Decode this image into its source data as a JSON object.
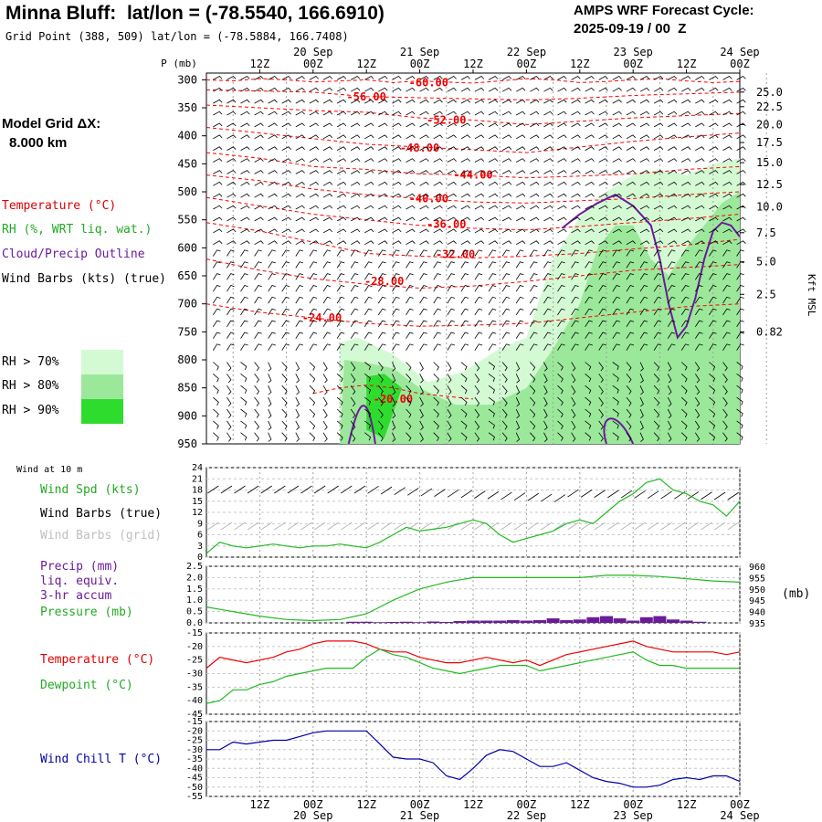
{
  "header": {
    "title": "Minna Bluff:  lat/lon = (-78.5540, 166.6910)",
    "subtitle": "Grid Point (388, 509) lat/lon = (-78.5884, 166.7408)",
    "cycle_line1": "AMPS WRF Forecast Cycle:",
    "cycle_line2": "2025-09-19 / 00  Z"
  },
  "model_grid": {
    "label": "Model Grid ΔX:",
    "value": "8.000 km"
  },
  "legend": {
    "temperature": "Temperature (°C)",
    "rh": "RH (%, WRT liq. wat.)",
    "cloud": "Cloud/Precip Outline",
    "wind": "Wind Barbs (kts) (true)",
    "rh70": "RH > 70%",
    "rh80": "RH > 80%",
    "rh90": "RH > 90%",
    "rh70_color": "#d4fad4",
    "rh80_color": "#9be89b",
    "rh90_color": "#2edc2e"
  },
  "panels": {
    "wind10m_title": "Wind at 10 m",
    "wind_spd": "Wind Spd (kts)",
    "wind_barbs_true": "Wind Barbs (true)",
    "wind_barbs_grid": "Wind Barbs (grid)",
    "precip_l1": "Precip (mm)",
    "precip_l2": "liq. equiv.",
    "precip_l3": "3-hr accum",
    "pressure": "Pressure (mb)",
    "pressure_unit": "(mb)",
    "temperature": "Temperature (°C)",
    "dewpoint": "Dewpoint (°C)",
    "windchill": "Wind Chill T (°C)"
  },
  "colors": {
    "temperature": "#ff0000",
    "rh_wind_spd": "#22bb22",
    "cloud": "#6a1b9a",
    "windchill": "#0000aa",
    "grid": "#a0a0a0",
    "grid_barbs": "#b0b0b0"
  },
  "chart_data": [
    {
      "type": "heatmap",
      "name": "time-height cross section",
      "p_axis_label": "P (mb)",
      "p_ticks": [
        "300",
        "350",
        "400",
        "450",
        "500",
        "550",
        "600",
        "650",
        "700",
        "750",
        "800",
        "850",
        "900",
        "950"
      ],
      "kft_label": "Kft MSL",
      "kft_ticks": [
        "25.0",
        "22.5",
        "20.0",
        "17.5",
        "15.0",
        "12.5",
        "10.0",
        "7.5",
        "5.0",
        "2.5",
        "0.82"
      ],
      "kft_p": [
        322,
        348,
        380,
        412,
        448,
        487,
        527,
        573,
        625,
        683,
        750
      ],
      "top_time_labels": [
        "12Z",
        "00Z",
        "12Z",
        "00Z",
        "12Z",
        "00Z",
        "12Z",
        "00Z",
        "12Z",
        "00Z"
      ],
      "top_date_labels": [
        "20 Sep",
        "21 Sep",
        "22 Sep",
        "23 Sep",
        "24 Sep"
      ],
      "temperature_contours": [
        {
          "label": "-60.00",
          "p": 305,
          "hours": [
            0,
            6,
            12,
            18,
            24,
            30,
            36,
            42,
            48,
            54,
            60,
            66,
            72,
            78,
            84,
            90,
            96,
            102,
            108,
            114,
            120
          ],
          "values_p": [
            300,
            302,
            298,
            300,
            304,
            302,
            300,
            305,
            302,
            304,
            306,
            302,
            298,
            300,
            305,
            303,
            300,
            298,
            302,
            305,
            303
          ]
        },
        {
          "label": "-56.00",
          "p": 330,
          "hours": [
            0,
            12,
            24,
            36,
            48,
            60,
            72,
            84,
            96,
            108,
            120
          ],
          "values_p": [
            318,
            320,
            322,
            330,
            332,
            334,
            336,
            333,
            328,
            325,
            322
          ]
        },
        {
          "label": "-52.00",
          "p": 372,
          "hours": [
            0,
            12,
            24,
            36,
            48,
            60,
            72,
            84,
            96,
            108,
            120
          ],
          "values_p": [
            345,
            350,
            355,
            358,
            368,
            372,
            380,
            374,
            368,
            364,
            360
          ]
        },
        {
          "label": "-48.00",
          "p": 422,
          "hours": [
            0,
            12,
            24,
            36,
            48,
            60,
            72,
            84,
            96,
            108,
            120
          ],
          "values_p": [
            385,
            395,
            405,
            415,
            420,
            425,
            430,
            420,
            410,
            402,
            395
          ]
        },
        {
          "label": "-44.00",
          "p": 470,
          "hours": [
            0,
            12,
            24,
            36,
            48,
            60,
            72,
            84,
            96,
            108,
            120
          ],
          "values_p": [
            430,
            440,
            455,
            460,
            468,
            470,
            475,
            472,
            468,
            460,
            455
          ]
        },
        {
          "label": "-40.00",
          "p": 512,
          "hours": [
            0,
            12,
            24,
            36,
            48,
            60,
            72,
            84,
            96,
            108,
            120
          ],
          "values_p": [
            470,
            480,
            495,
            505,
            512,
            518,
            520,
            516,
            512,
            505,
            500
          ]
        },
        {
          "label": "-36.00",
          "p": 558,
          "hours": [
            0,
            12,
            24,
            36,
            48,
            60,
            72,
            84,
            96,
            108,
            120
          ],
          "values_p": [
            510,
            525,
            540,
            550,
            560,
            565,
            568,
            562,
            555,
            548,
            540
          ]
        },
        {
          "label": "-32.00",
          "p": 612,
          "hours": [
            0,
            12,
            24,
            36,
            48,
            60,
            72,
            84,
            96,
            108,
            120
          ],
          "values_p": [
            555,
            570,
            590,
            610,
            615,
            618,
            615,
            610,
            602,
            595,
            585
          ]
        },
        {
          "label": "-28.00",
          "p": 660,
          "hours": [
            0,
            12,
            24,
            36,
            48,
            60,
            72,
            84,
            96,
            108,
            120
          ],
          "values_p": [
            620,
            640,
            655,
            665,
            672,
            668,
            660,
            650,
            640,
            635,
            630
          ]
        },
        {
          "label": "-24.00",
          "p": 725,
          "hours": [
            0,
            12,
            24,
            36,
            48,
            60,
            72,
            84,
            96,
            108,
            120
          ],
          "values_p": [
            700,
            715,
            725,
            735,
            740,
            738,
            735,
            725,
            715,
            705,
            700
          ]
        },
        {
          "label": "-20.00",
          "p": 870,
          "hours": [
            24,
            30,
            36,
            42,
            48,
            54,
            60
          ],
          "values_p": [
            860,
            850,
            845,
            850,
            860,
            865,
            870
          ]
        }
      ],
      "rh_regions": [
        {
          "threshold": "70",
          "polygon": [
            [
              30,
              950
            ],
            [
              30,
              770
            ],
            [
              34,
              760
            ],
            [
              42,
              790
            ],
            [
              50,
              840
            ],
            [
              58,
              820
            ],
            [
              66,
              780
            ],
            [
              72,
              760
            ],
            [
              78,
              620
            ],
            [
              84,
              545
            ],
            [
              90,
              500
            ],
            [
              96,
              470
            ],
            [
              102,
              460
            ],
            [
              108,
              470
            ],
            [
              114,
              450
            ],
            [
              120,
              440
            ],
            [
              120,
              950
            ]
          ]
        },
        {
          "threshold": "80",
          "polygon": [
            [
              30,
              950
            ],
            [
              31,
              800
            ],
            [
              36,
              805
            ],
            [
              42,
              815
            ],
            [
              48,
              850
            ],
            [
              56,
              880
            ],
            [
              64,
              880
            ],
            [
              72,
              850
            ],
            [
              78,
              780
            ],
            [
              84,
              700
            ],
            [
              88,
              600
            ],
            [
              92,
              560
            ],
            [
              96,
              560
            ],
            [
              100,
              620
            ],
            [
              104,
              650
            ],
            [
              108,
              600
            ],
            [
              112,
              560
            ],
            [
              116,
              520
            ],
            [
              120,
              500
            ],
            [
              120,
              950
            ]
          ]
        },
        {
          "threshold": "90",
          "polygon": [
            [
              36,
              925
            ],
            [
              36,
              830
            ],
            [
              40,
              825
            ],
            [
              44,
              850
            ],
            [
              40,
              940
            ]
          ]
        }
      ],
      "cloud_outline": [
        [
          [
            80,
            565
          ],
          [
            84,
            540
          ],
          [
            88,
            520
          ],
          [
            92,
            505
          ],
          [
            96,
            525
          ],
          [
            100,
            560
          ],
          [
            102,
            620
          ],
          [
            104,
            700
          ],
          [
            106,
            760
          ],
          [
            108,
            740
          ],
          [
            110,
            690
          ],
          [
            112,
            620
          ],
          [
            114,
            570
          ],
          [
            116,
            555
          ],
          [
            118,
            560
          ],
          [
            120,
            580
          ]
        ]
      ],
      "wind_barbs": "dense grid; speeds 5-35 kts, westerly aloft, south-easterly near surface"
    },
    {
      "type": "line",
      "name": "10 m wind speed",
      "ylabel": "Wind Spd (kts)",
      "ylim": [
        0,
        24
      ],
      "y_ticks": [
        "0",
        "3",
        "6",
        "9",
        "12",
        "15",
        "18",
        "21",
        "24"
      ],
      "hours": [
        0,
        3,
        6,
        9,
        12,
        15,
        18,
        21,
        24,
        27,
        30,
        33,
        36,
        39,
        42,
        45,
        48,
        51,
        54,
        57,
        60,
        63,
        66,
        69,
        72,
        75,
        78,
        81,
        84,
        87,
        90,
        93,
        96,
        99,
        102,
        105,
        108,
        111,
        114,
        117,
        120
      ],
      "values": [
        1,
        4,
        3,
        2.5,
        3,
        3.5,
        3,
        2.5,
        3,
        3,
        3.5,
        3,
        2.5,
        4,
        6,
        8,
        7,
        7.5,
        8,
        9,
        10,
        9,
        6,
        4,
        5,
        6,
        7,
        9,
        10,
        9,
        12,
        15,
        17,
        20,
        21,
        18,
        17,
        15,
        14,
        11,
        15
      ]
    },
    {
      "type": "bar",
      "name": "precip 3-hr accum",
      "ylim": [
        0,
        2.5
      ],
      "y_ticks": [
        "0.0",
        "0.5",
        "1.0",
        "1.5",
        "2.0",
        "2.5"
      ],
      "hours": [
        33,
        36,
        39,
        42,
        45,
        48,
        51,
        54,
        57,
        60,
        63,
        66,
        69,
        72,
        75,
        78,
        81,
        84,
        87,
        90,
        93,
        96,
        99,
        102,
        105,
        108,
        111
      ],
      "values": [
        0.05,
        0.05,
        0.03,
        0.04,
        0.05,
        0.03,
        0.06,
        0.04,
        0.08,
        0.1,
        0.1,
        0.1,
        0.12,
        0.1,
        0.12,
        0.2,
        0.12,
        0.15,
        0.25,
        0.3,
        0.2,
        0.1,
        0.25,
        0.3,
        0.15,
        0.1,
        0.05
      ]
    },
    {
      "type": "line",
      "name": "surface pressure",
      "ylabel": "Pressure (mb)",
      "ylim": [
        935,
        960
      ],
      "y_ticks": [
        "935",
        "940",
        "945",
        "950",
        "955",
        "960"
      ],
      "hours": [
        0,
        6,
        12,
        18,
        24,
        30,
        36,
        42,
        48,
        54,
        60,
        66,
        72,
        78,
        84,
        90,
        96,
        102,
        108,
        114,
        120
      ],
      "values": [
        942,
        940,
        938,
        936.5,
        936,
        936.5,
        939,
        945,
        950,
        953,
        955,
        955,
        955,
        955,
        955,
        956,
        956,
        955.5,
        954.5,
        953.5,
        953
      ]
    },
    {
      "type": "line",
      "name": "temperature and dewpoint",
      "ylim": [
        -45,
        -15
      ],
      "y_ticks": [
        "-15",
        "-20",
        "-25",
        "-30",
        "-35",
        "-40",
        "-45"
      ],
      "hours": [
        0,
        3,
        6,
        9,
        12,
        15,
        18,
        21,
        24,
        27,
        30,
        33,
        36,
        39,
        42,
        45,
        48,
        51,
        54,
        57,
        60,
        63,
        66,
        69,
        72,
        75,
        78,
        81,
        84,
        87,
        90,
        93,
        96,
        99,
        102,
        105,
        108,
        111,
        114,
        117,
        120
      ],
      "series": [
        {
          "name": "Temperature",
          "values": [
            -28,
            -24,
            -25,
            -26,
            -25,
            -24,
            -22,
            -21,
            -19,
            -18,
            -18,
            -18,
            -19,
            -21,
            -22,
            -22,
            -24,
            -25,
            -26,
            -26,
            -25,
            -24,
            -25,
            -26,
            -25,
            -27,
            -25,
            -23,
            -22,
            -21,
            -20,
            -19,
            -18,
            -20,
            -21,
            -22,
            -22,
            -22,
            -22,
            -23,
            -22
          ]
        },
        {
          "name": "Dewpoint",
          "values": [
            -41,
            -40,
            -36,
            -36,
            -34,
            -33,
            -31,
            -30,
            -29,
            -28,
            -28,
            -28,
            -24,
            -21,
            -23,
            -24,
            -26,
            -28,
            -29,
            -30,
            -29,
            -28,
            -27,
            -27,
            -27,
            -29,
            -28,
            -27,
            -26,
            -25,
            -24,
            -23,
            -22,
            -25,
            -27,
            -27,
            -28,
            -28,
            -28,
            -28,
            -28
          ]
        }
      ]
    },
    {
      "type": "line",
      "name": "wind chill",
      "ylabel": "Wind Chill T (°C)",
      "ylim": [
        -55,
        -15
      ],
      "y_ticks": [
        "-15",
        "-20",
        "-25",
        "-30",
        "-35",
        "-40",
        "-45",
        "-50",
        "-55"
      ],
      "hours": [
        0,
        3,
        6,
        9,
        12,
        15,
        18,
        21,
        24,
        27,
        30,
        33,
        36,
        39,
        42,
        45,
        48,
        51,
        54,
        57,
        60,
        63,
        66,
        69,
        72,
        75,
        78,
        81,
        84,
        87,
        90,
        93,
        96,
        99,
        102,
        105,
        108,
        111,
        114,
        117,
        120
      ],
      "values": [
        -30,
        -30,
        -26,
        -27,
        -26,
        -25,
        -25,
        -23,
        -21,
        -20,
        -20,
        -20,
        -20,
        -27,
        -34,
        -35,
        -35,
        -37,
        -44,
        -46,
        -40,
        -33,
        -30,
        -31,
        -35,
        -39,
        -39,
        -37,
        -41,
        -45,
        -47,
        -48,
        -50,
        -50,
        -49,
        -46,
        -45,
        -46,
        -44,
        -44,
        -47
      ]
    }
  ],
  "bottom_axis": {
    "time_labels": [
      "12Z",
      "00Z",
      "12Z",
      "00Z",
      "12Z",
      "00Z",
      "12Z",
      "00Z",
      "12Z",
      "00Z"
    ],
    "date_labels": [
      "20 Sep",
      "21 Sep",
      "22 Sep",
      "23 Sep",
      "24 Sep"
    ]
  }
}
